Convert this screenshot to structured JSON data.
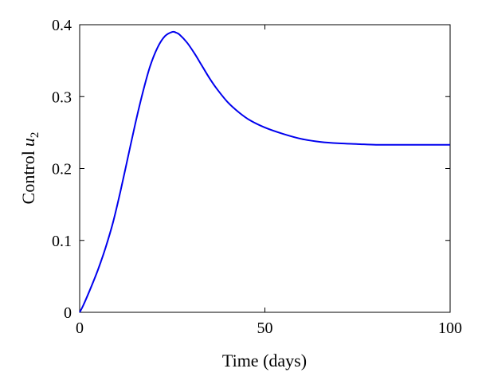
{
  "chart_data": {
    "type": "line",
    "xlabel": "Time (days)",
    "ylabel": "Control",
    "ylabel_var": "u",
    "ylabel_sub": "2",
    "xlim": [
      0,
      100
    ],
    "ylim": [
      0,
      0.4
    ],
    "xticks": [
      0,
      50,
      100
    ],
    "xtick_labels": [
      "0",
      "50",
      "100"
    ],
    "yticks": [
      0,
      0.1,
      0.2,
      0.3,
      0.4
    ],
    "ytick_labels": [
      "0",
      "0.1",
      "0.2",
      "0.3",
      "0.4"
    ],
    "grid": false,
    "colors": {
      "line": "#0000ee",
      "axes": "#000000"
    },
    "series": [
      {
        "x": [
          0,
          1,
          3,
          5,
          7,
          9,
          11,
          13,
          15,
          17,
          19,
          21,
          23,
          25,
          26,
          27,
          29,
          31,
          33,
          35,
          37,
          40,
          43,
          46,
          50,
          55,
          60,
          65,
          70,
          75,
          80,
          85,
          90,
          95,
          100
        ],
        "y": [
          0,
          0.01,
          0.034,
          0.06,
          0.09,
          0.125,
          0.168,
          0.215,
          0.262,
          0.305,
          0.342,
          0.368,
          0.384,
          0.39,
          0.389,
          0.386,
          0.375,
          0.36,
          0.343,
          0.326,
          0.311,
          0.292,
          0.278,
          0.267,
          0.257,
          0.248,
          0.241,
          0.237,
          0.235,
          0.234,
          0.233,
          0.233,
          0.233,
          0.233,
          0.233
        ]
      }
    ]
  }
}
